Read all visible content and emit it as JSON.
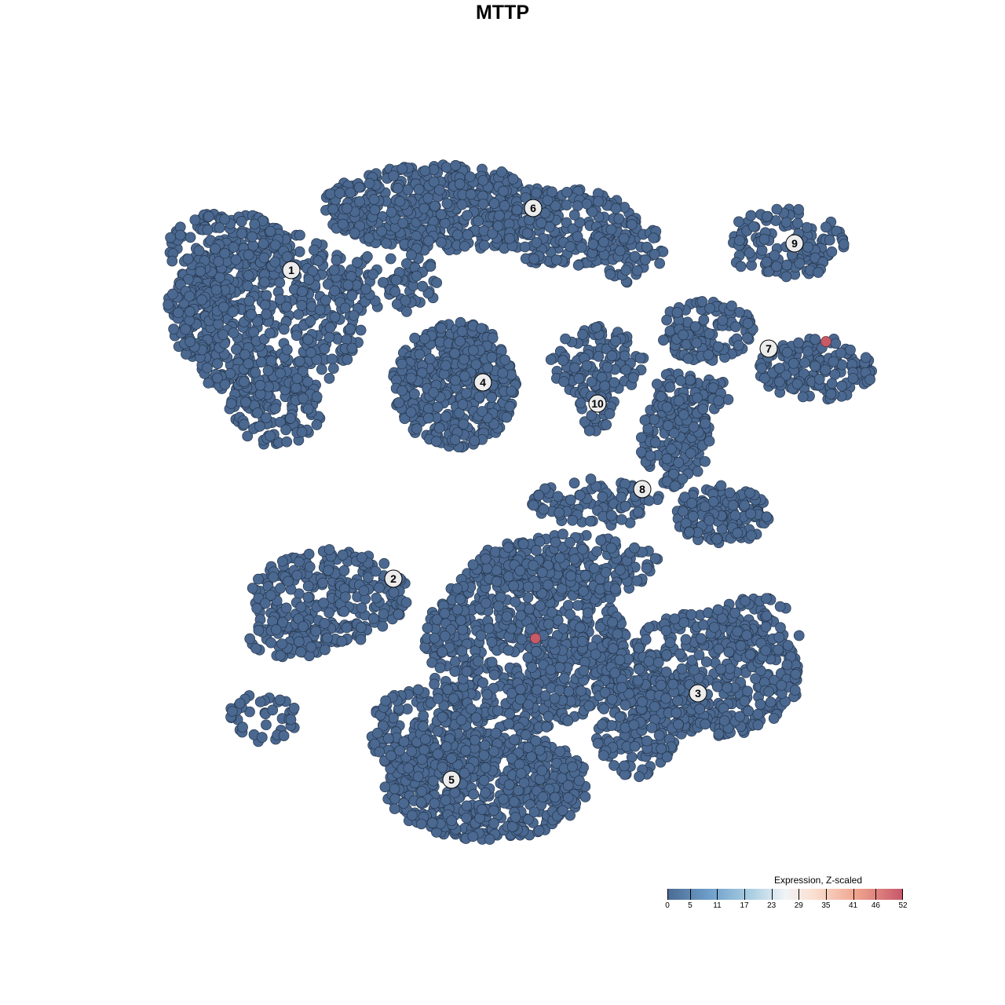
{
  "chart_data": {
    "type": "scatter",
    "title": "MTTP",
    "xlabel": "",
    "ylabel": "",
    "grid": false,
    "axes_visible": false,
    "point_color_default": "#4a6890",
    "point_color_high": "#c85a68",
    "clusters": [
      {
        "label": "1",
        "x": -26.9,
        "y": 29.6
      },
      {
        "label": "2",
        "x": -13.9,
        "y": -9.7
      },
      {
        "label": "3",
        "x": 24.9,
        "y": -24.3
      },
      {
        "label": "4",
        "x": -2.5,
        "y": 15.3
      },
      {
        "label": "5",
        "x": -6.5,
        "y": -35.3
      },
      {
        "label": "6",
        "x": 3.9,
        "y": 37.5
      },
      {
        "label": "7",
        "x": 33.9,
        "y": 19.6
      },
      {
        "label": "8",
        "x": 17.8,
        "y": 1.7
      },
      {
        "label": "9",
        "x": 37.2,
        "y": 33.0
      },
      {
        "label": "10",
        "x": 12.1,
        "y": 12.6
      }
    ],
    "highlighted_points": [
      {
        "x": 41.2,
        "y": 20.5,
        "value": 52
      },
      {
        "x": 4.2,
        "y": -17.3,
        "value": 52
      }
    ],
    "baseline_value": 0,
    "legend": {
      "title": "Expression, Z-scaled",
      "placement": "bottom-right",
      "ticks": [
        0,
        5,
        11,
        17,
        23,
        29,
        35,
        41,
        46,
        52
      ],
      "range": [
        0,
        52
      ],
      "colors": [
        "#4b6a92",
        "#6e9fcb",
        "#a8cde2",
        "#f0f3f6",
        "#fbe0d2",
        "#f0a58f",
        "#c8566a"
      ]
    }
  }
}
